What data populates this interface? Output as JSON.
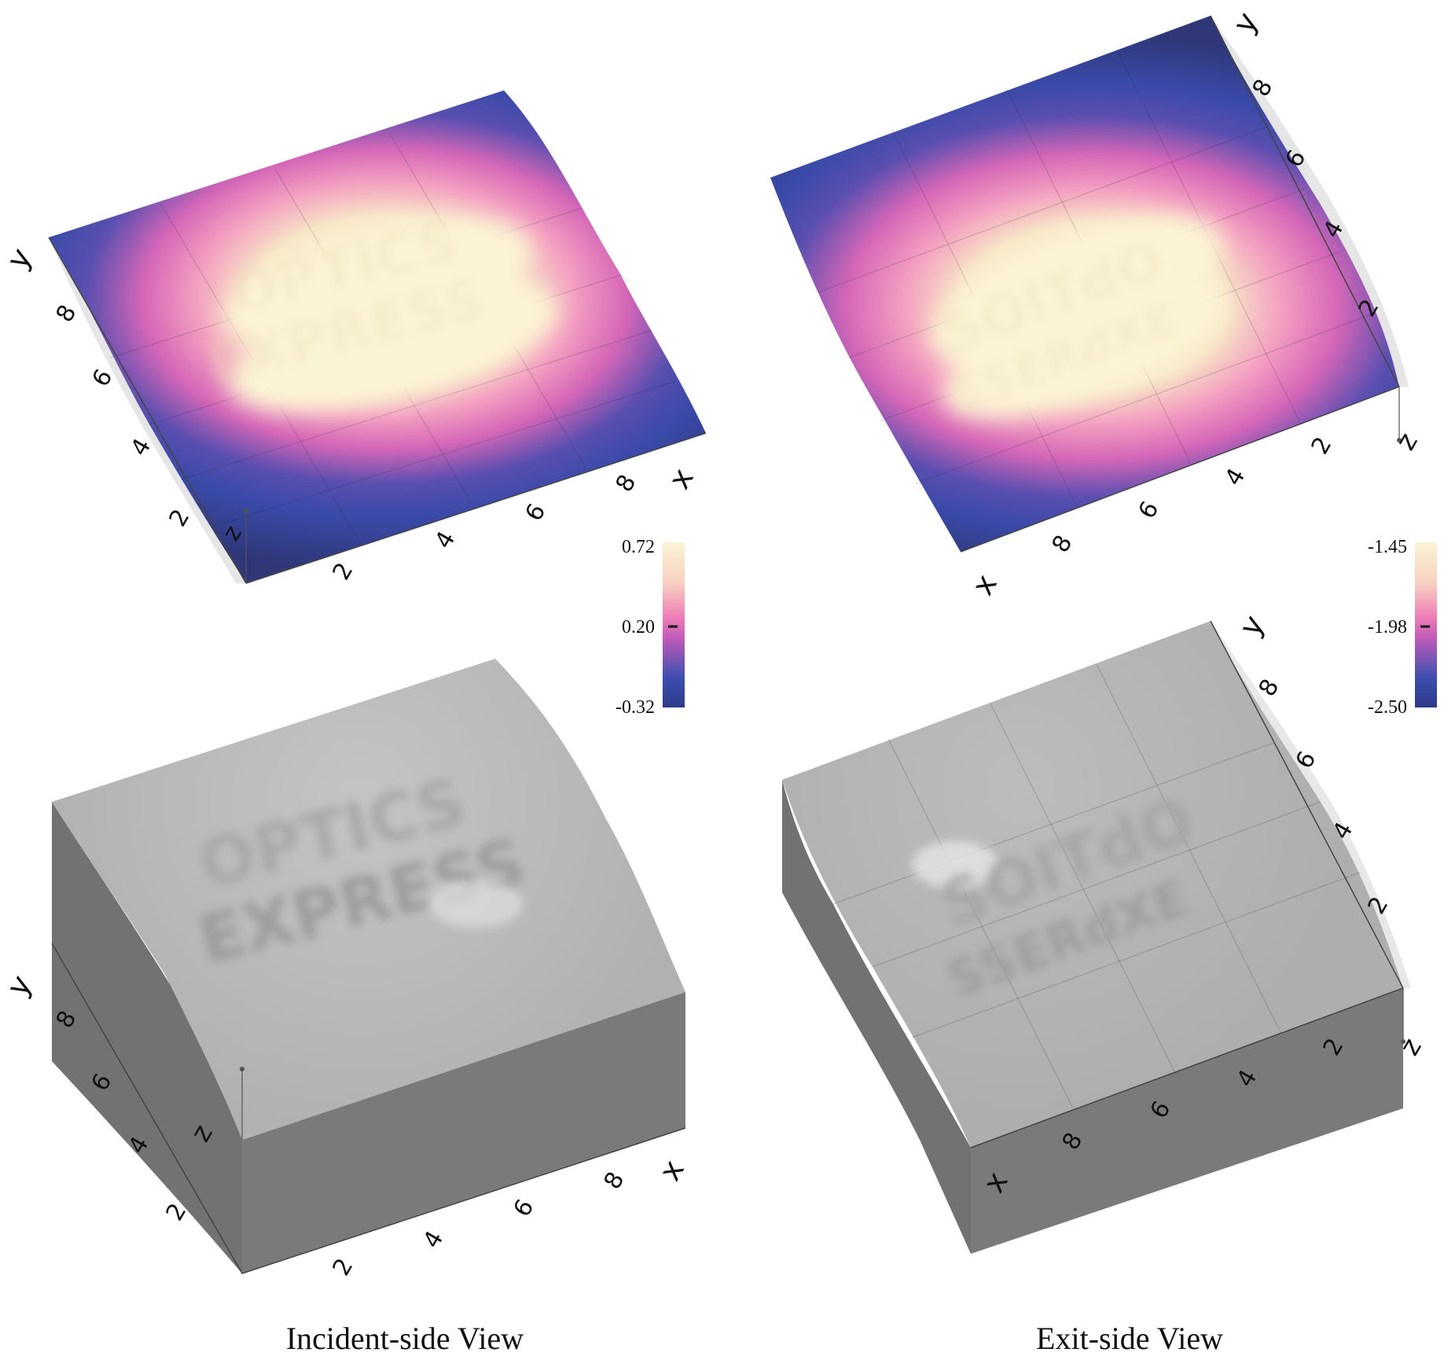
{
  "colors": {
    "colormap": [
      "#2e3a8a",
      "#3c4fb0",
      "#c05bb8",
      "#ef7fb6",
      "#f7cfc0",
      "#fbf4d4"
    ],
    "surface_gray": "#b9b9b9",
    "side_gray_dark": "#6f6f6f",
    "side_gray_mid": "#8a8a8a"
  },
  "panels": {
    "incident_top": {
      "x_ticks": [
        "2",
        "4",
        "6",
        "8"
      ],
      "y_ticks": [
        "2",
        "4",
        "6",
        "8"
      ],
      "x_label": "x",
      "y_label": "y",
      "z_label": "z",
      "colorbar": {
        "max": "0.72",
        "mid": "0.20",
        "min": "-0.32"
      }
    },
    "exit_top": {
      "x_ticks": [
        "2",
        "4",
        "6",
        "8"
      ],
      "y_ticks": [
        "2",
        "4",
        "6",
        "8"
      ],
      "x_label": "x",
      "y_label": "y",
      "z_label": "z",
      "colorbar": {
        "max": "-1.45",
        "mid": "-1.98",
        "min": "-2.50"
      }
    },
    "incident_bottom": {
      "x_ticks": [
        "2",
        "4",
        "6",
        "8"
      ],
      "y_ticks": [
        "2",
        "4",
        "6",
        "8"
      ],
      "x_label": "x",
      "y_label": "y",
      "z_label": "z"
    },
    "exit_bottom": {
      "x_ticks": [
        "2",
        "4",
        "6",
        "8"
      ],
      "y_ticks": [
        "2",
        "4",
        "6",
        "8"
      ],
      "x_label": "x",
      "y_label": "y",
      "z_label": "z"
    }
  },
  "captions": {
    "incident": "Incident-side View",
    "exit": "Exit-side View"
  }
}
